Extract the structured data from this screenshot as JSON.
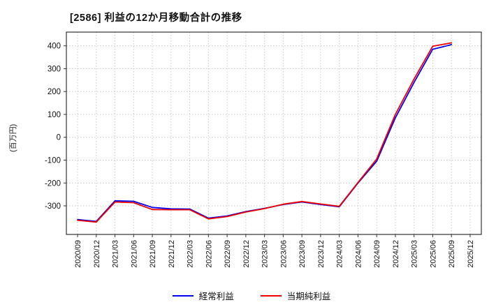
{
  "chart_data": {
    "type": "line",
    "title": "[2586]  利益の12か月移動合計の推移",
    "ylabel": "(百万円)",
    "categories": [
      "2020/09",
      "2020/12",
      "2021/03",
      "2021/06",
      "2021/09",
      "2021/12",
      "2022/03",
      "2022/06",
      "2022/09",
      "2022/12",
      "2023/03",
      "2023/06",
      "2023/09",
      "2023/12",
      "2024/03",
      "2024/06",
      "2024/09",
      "2024/12",
      "2025/03",
      "2025/06",
      "2025/09",
      "2025/12"
    ],
    "series": [
      {
        "name": "経常利益",
        "color": "#0000ee",
        "values": [
          -360,
          -368,
          -278,
          -280,
          -307,
          -313,
          -314,
          -354,
          -344,
          -325,
          -311,
          -294,
          -283,
          -294,
          -304,
          -200,
          -105,
          85,
          240,
          385,
          405,
          null
        ]
      },
      {
        "name": "当期純利益",
        "color": "#ee0000",
        "values": [
          -363,
          -371,
          -283,
          -286,
          -316,
          -317,
          -317,
          -357,
          -347,
          -327,
          -312,
          -293,
          -281,
          -292,
          -302,
          -198,
          -95,
          100,
          255,
          398,
          413,
          null
        ]
      }
    ],
    "ylim": [
      -425,
      460
    ],
    "yticks": [
      400,
      300,
      200,
      100,
      0,
      -100,
      -200,
      -300
    ],
    "grid": true,
    "grid_color": "#c9c9c9",
    "axis_color": "#333333",
    "legend_position": "bottom"
  }
}
